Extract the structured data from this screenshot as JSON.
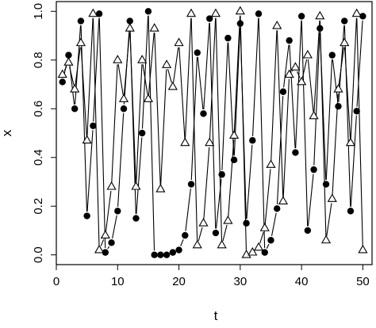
{
  "chart_data": {
    "type": "scatter",
    "title": "",
    "xlabel": "t",
    "ylabel": "x",
    "xlim": [
      0,
      51.5
    ],
    "ylim": [
      -0.04,
      1.04
    ],
    "x_ticks": [
      0,
      10,
      20,
      30,
      40,
      50
    ],
    "y_ticks": [
      0.0,
      0.2,
      0.4,
      0.6,
      0.8,
      1.0
    ],
    "x_tick_labels": [
      "0",
      "10",
      "20",
      "30",
      "40",
      "50"
    ],
    "y_tick_labels": [
      "0.0",
      "0.2",
      "0.4",
      "0.6",
      "0.8",
      "1.0"
    ],
    "grid": false,
    "series": [
      {
        "marker": "filled-circle",
        "connected": true,
        "color": "#000000",
        "x": [
          1,
          2,
          3,
          4,
          5,
          6,
          7,
          8,
          9,
          10,
          11,
          12,
          13,
          14,
          15,
          16,
          17,
          18,
          19,
          20,
          21,
          22,
          23,
          24,
          25,
          26,
          27,
          28,
          29,
          30,
          31,
          32,
          33,
          34,
          35,
          36,
          37,
          38,
          39,
          40,
          41,
          42,
          43,
          44,
          45,
          46,
          47,
          48,
          49,
          50
        ],
        "y": [
          0.71,
          0.82,
          0.6,
          0.96,
          0.16,
          0.53,
          0.99,
          0.01,
          0.05,
          0.18,
          0.6,
          0.96,
          0.15,
          0.5,
          1.0,
          0.0,
          0.0,
          0.0,
          0.01,
          0.02,
          0.08,
          0.29,
          0.83,
          0.58,
          0.97,
          0.09,
          0.33,
          0.89,
          0.39,
          0.95,
          0.13,
          0.47,
          0.99,
          0.01,
          0.06,
          0.19,
          0.67,
          0.88,
          0.42,
          0.98,
          0.1,
          0.35,
          0.93,
          0.29,
          0.82,
          0.61,
          0.96,
          0.18,
          0.59,
          0.98
        ]
      },
      {
        "marker": "open-triangle",
        "connected": true,
        "color": "#000000",
        "x": [
          1,
          2,
          3,
          4,
          5,
          6,
          7,
          8,
          9,
          10,
          11,
          12,
          13,
          14,
          15,
          16,
          17,
          18,
          19,
          20,
          21,
          22,
          23,
          24,
          25,
          26,
          27,
          28,
          29,
          30,
          31,
          32,
          33,
          34,
          35,
          36,
          37,
          38,
          39,
          40,
          41,
          42,
          43,
          44,
          45,
          46,
          47,
          48,
          49,
          50
        ],
        "y": [
          0.74,
          0.79,
          0.68,
          0.87,
          0.47,
          0.99,
          0.02,
          0.08,
          0.28,
          0.8,
          0.64,
          0.93,
          0.28,
          0.8,
          0.64,
          0.93,
          0.27,
          0.78,
          0.69,
          0.87,
          0.46,
          0.99,
          0.04,
          0.13,
          0.46,
          0.99,
          0.04,
          0.14,
          0.49,
          1.0,
          0.0,
          0.01,
          0.03,
          0.11,
          0.37,
          0.94,
          0.22,
          0.74,
          0.77,
          0.71,
          0.82,
          0.57,
          0.98,
          0.06,
          0.23,
          0.68,
          0.87,
          0.46,
          0.99,
          0.02
        ]
      }
    ]
  }
}
